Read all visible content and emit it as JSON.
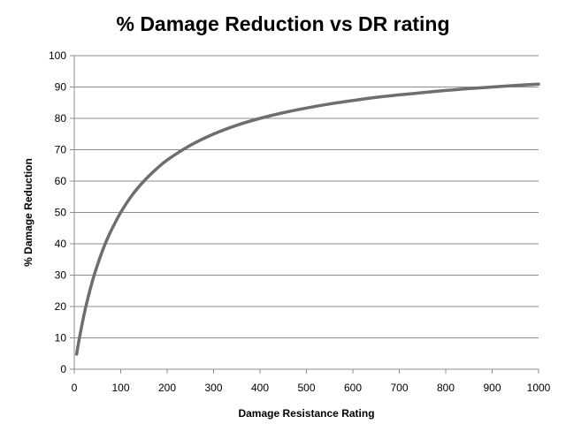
{
  "chart_data": {
    "type": "line",
    "title": "% Damage Reduction vs DR rating",
    "xlabel": "Damage Resistance Rating",
    "ylabel": "% Damage Reduction",
    "xlim": [
      0,
      1000
    ],
    "ylim": [
      0,
      100
    ],
    "x_ticks": [
      "0",
      "100",
      "200",
      "300",
      "400",
      "500",
      "600",
      "700",
      "800",
      "900",
      "1000"
    ],
    "y_ticks": [
      "0",
      "10",
      "20",
      "30",
      "40",
      "50",
      "60",
      "70",
      "80",
      "90",
      "100"
    ],
    "grid": true,
    "legend": "none",
    "line_color": "#6e6e6e",
    "series": [
      {
        "x": [
          5,
          10,
          20,
          30,
          40,
          50,
          60,
          70,
          80,
          100,
          125,
          150,
          175,
          200,
          250,
          300,
          350,
          400,
          450,
          500,
          550,
          600,
          650,
          700,
          750,
          800,
          850,
          900,
          950,
          1000
        ],
        "values": [
          4.8,
          9.1,
          16.7,
          23.1,
          28.6,
          33.3,
          37.5,
          41.2,
          44.4,
          50.0,
          55.6,
          60.0,
          63.6,
          66.7,
          71.4,
          75.0,
          77.8,
          80.0,
          81.8,
          83.3,
          84.6,
          85.7,
          86.7,
          87.5,
          88.2,
          88.9,
          89.5,
          90.0,
          90.5,
          90.9
        ]
      }
    ]
  }
}
